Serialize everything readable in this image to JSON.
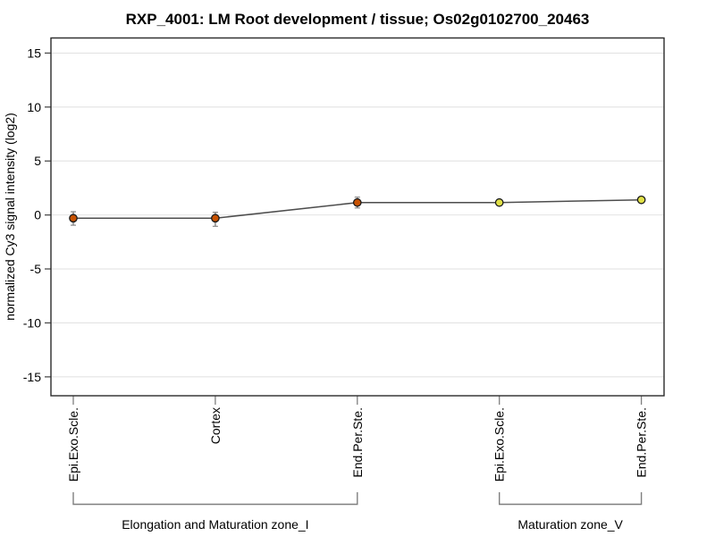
{
  "chart_data": {
    "type": "line",
    "title": "RXP_4001: LM Root development / tissue; Os02g0102700_20463",
    "ylabel": "normalized Cy3 signal intensity (log2)",
    "ylim": [
      -16.75,
      16.4
    ],
    "yticks": [
      15,
      10,
      5,
      0,
      -5,
      -10,
      -15
    ],
    "grid": true,
    "legend": "none",
    "categories": [
      "Epi.Exo.Scle.",
      "Cortex",
      "End.Per.Ste.",
      "Epi.Exo.Scle.",
      "End.Per.Ste."
    ],
    "series": [
      {
        "name": "normalized Cy3 signal intensity (log2)",
        "values": [
          -0.3,
          -0.3,
          1.15,
          1.15,
          1.4
        ],
        "error_low": [
          -0.95,
          -1.05,
          0.65,
          0.9,
          1.2
        ],
        "error_high": [
          0.3,
          0.25,
          1.65,
          1.4,
          1.55
        ],
        "point_colors": [
          "#c85203",
          "#c85203",
          "#c85203",
          "#e0e046",
          "#e0e046"
        ]
      }
    ],
    "groups": [
      {
        "label": "Elongation and Maturation zone_I",
        "from": 0,
        "to": 2
      },
      {
        "label": "Maturation zone_V",
        "from": 3,
        "to": 4
      }
    ],
    "colors": {
      "line": "#4d4d4d",
      "grid": "#e3e3e3",
      "error_bar": "#8a8a8a",
      "bracket": "#7f7f7f",
      "axis_box": "#2b2b2b",
      "y_tick": "#4d4d4d",
      "x_tick": "#7f7f7f",
      "point_stroke": "#1b1b1b",
      "group1_point_fill": "#c85203",
      "group2_point_fill": "#e0e046",
      "text": "#000000"
    }
  }
}
